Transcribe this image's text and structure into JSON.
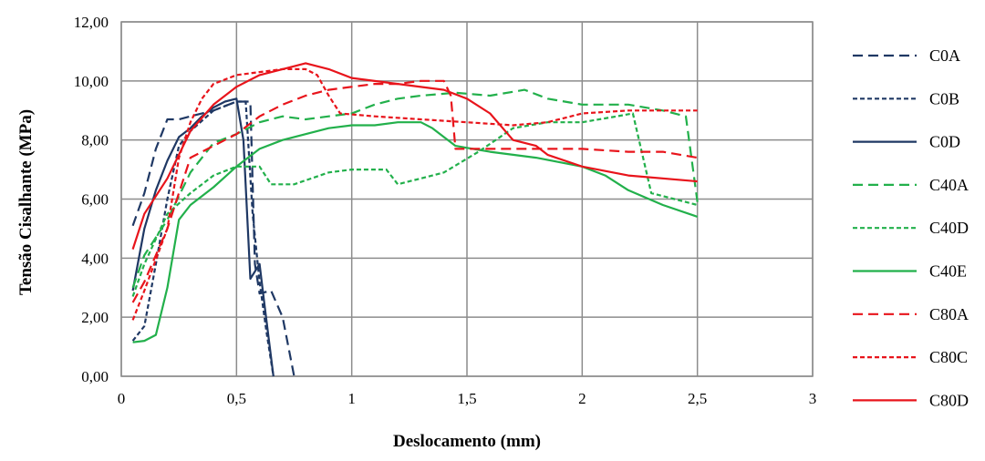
{
  "chart_data": {
    "type": "line",
    "title": "",
    "xlabel": "Deslocamento (mm)",
    "ylabel": "Tensão Cisalhante (MPa)",
    "xlim": [
      0,
      3
    ],
    "ylim": [
      0,
      12
    ],
    "x_ticks": [
      "0",
      "0,5",
      "1",
      "1,5",
      "2",
      "2,5",
      "3"
    ],
    "y_ticks": [
      "0,00",
      "2,00",
      "4,00",
      "6,00",
      "8,00",
      "10,00",
      "12,00"
    ],
    "grid": true,
    "legend_position": "right",
    "series": [
      {
        "name": "C0A",
        "color": "#1f3864",
        "dash": "long-dash",
        "points": [
          [
            0.05,
            5.1
          ],
          [
            0.1,
            6.2
          ],
          [
            0.15,
            7.7
          ],
          [
            0.2,
            8.7
          ],
          [
            0.25,
            8.7
          ],
          [
            0.3,
            8.8
          ],
          [
            0.4,
            9.0
          ],
          [
            0.5,
            9.3
          ],
          [
            0.56,
            9.3
          ],
          [
            0.58,
            3.8
          ],
          [
            0.6,
            2.8
          ],
          [
            0.65,
            2.9
          ],
          [
            0.7,
            2.0
          ],
          [
            0.75,
            0.0
          ]
        ]
      },
      {
        "name": "C0B",
        "color": "#1f3864",
        "dash": "short-dash",
        "points": [
          [
            0.05,
            1.2
          ],
          [
            0.1,
            1.7
          ],
          [
            0.15,
            3.8
          ],
          [
            0.2,
            6.0
          ],
          [
            0.25,
            7.8
          ],
          [
            0.3,
            8.3
          ],
          [
            0.4,
            9.0
          ],
          [
            0.5,
            9.3
          ],
          [
            0.54,
            9.3
          ],
          [
            0.57,
            5.5
          ],
          [
            0.6,
            3.2
          ],
          [
            0.63,
            1.5
          ],
          [
            0.66,
            0.0
          ]
        ]
      },
      {
        "name": "C0D",
        "color": "#1f3864",
        "dash": "solid",
        "points": [
          [
            0.05,
            2.9
          ],
          [
            0.1,
            5.0
          ],
          [
            0.15,
            6.3
          ],
          [
            0.2,
            7.3
          ],
          [
            0.25,
            8.1
          ],
          [
            0.3,
            8.4
          ],
          [
            0.35,
            8.8
          ],
          [
            0.4,
            9.1
          ],
          [
            0.45,
            9.3
          ],
          [
            0.5,
            9.4
          ],
          [
            0.53,
            8.0
          ],
          [
            0.56,
            3.3
          ],
          [
            0.6,
            3.8
          ],
          [
            0.62,
            2.5
          ],
          [
            0.66,
            0.0
          ]
        ]
      },
      {
        "name": "C40A",
        "color": "#22b04b",
        "dash": "long-dash",
        "points": [
          [
            0.05,
            3.0
          ],
          [
            0.1,
            4.1
          ],
          [
            0.2,
            5.3
          ],
          [
            0.3,
            6.9
          ],
          [
            0.4,
            7.9
          ],
          [
            0.5,
            8.2
          ],
          [
            0.6,
            8.6
          ],
          [
            0.7,
            8.8
          ],
          [
            0.8,
            8.7
          ],
          [
            0.9,
            8.8
          ],
          [
            1.0,
            8.9
          ],
          [
            1.1,
            9.2
          ],
          [
            1.2,
            9.4
          ],
          [
            1.3,
            9.5
          ],
          [
            1.45,
            9.6
          ],
          [
            1.6,
            9.5
          ],
          [
            1.75,
            9.7
          ],
          [
            1.85,
            9.4
          ],
          [
            2.0,
            9.2
          ],
          [
            2.2,
            9.2
          ],
          [
            2.35,
            9.0
          ],
          [
            2.45,
            8.8
          ],
          [
            2.5,
            5.9
          ]
        ]
      },
      {
        "name": "C40D",
        "color": "#22b04b",
        "dash": "short-dash",
        "points": [
          [
            0.05,
            2.7
          ],
          [
            0.1,
            3.8
          ],
          [
            0.2,
            5.5
          ],
          [
            0.3,
            6.2
          ],
          [
            0.4,
            6.8
          ],
          [
            0.5,
            7.1
          ],
          [
            0.6,
            7.1
          ],
          [
            0.65,
            6.5
          ],
          [
            0.75,
            6.5
          ],
          [
            0.9,
            6.9
          ],
          [
            1.0,
            7.0
          ],
          [
            1.15,
            7.0
          ],
          [
            1.2,
            6.5
          ],
          [
            1.3,
            6.7
          ],
          [
            1.4,
            6.9
          ],
          [
            1.55,
            7.6
          ],
          [
            1.7,
            8.4
          ],
          [
            1.85,
            8.6
          ],
          [
            2.0,
            8.6
          ],
          [
            2.15,
            8.8
          ],
          [
            2.22,
            8.9
          ],
          [
            2.3,
            6.2
          ],
          [
            2.4,
            6.0
          ],
          [
            2.5,
            5.8
          ]
        ]
      },
      {
        "name": "C40E",
        "color": "#22b04b",
        "dash": "solid",
        "points": [
          [
            0.05,
            1.15
          ],
          [
            0.1,
            1.2
          ],
          [
            0.15,
            1.4
          ],
          [
            0.2,
            3.0
          ],
          [
            0.25,
            5.3
          ],
          [
            0.3,
            5.8
          ],
          [
            0.4,
            6.4
          ],
          [
            0.5,
            7.1
          ],
          [
            0.6,
            7.7
          ],
          [
            0.7,
            8.0
          ],
          [
            0.8,
            8.2
          ],
          [
            0.9,
            8.4
          ],
          [
            1.0,
            8.5
          ],
          [
            1.1,
            8.5
          ],
          [
            1.2,
            8.6
          ],
          [
            1.3,
            8.6
          ],
          [
            1.35,
            8.4
          ],
          [
            1.45,
            7.8
          ],
          [
            1.6,
            7.6
          ],
          [
            1.8,
            7.4
          ],
          [
            2.0,
            7.1
          ],
          [
            2.1,
            6.8
          ],
          [
            2.2,
            6.3
          ],
          [
            2.35,
            5.8
          ],
          [
            2.5,
            5.4
          ]
        ]
      },
      {
        "name": "C80A",
        "color": "#e8141b",
        "dash": "long-dash",
        "points": [
          [
            0.05,
            2.5
          ],
          [
            0.1,
            3.2
          ],
          [
            0.2,
            5.0
          ],
          [
            0.3,
            7.4
          ],
          [
            0.4,
            7.8
          ],
          [
            0.5,
            8.2
          ],
          [
            0.6,
            8.8
          ],
          [
            0.7,
            9.2
          ],
          [
            0.8,
            9.5
          ],
          [
            0.9,
            9.7
          ],
          [
            1.0,
            9.8
          ],
          [
            1.1,
            9.9
          ],
          [
            1.2,
            9.9
          ],
          [
            1.3,
            10.0
          ],
          [
            1.4,
            10.0
          ],
          [
            1.43,
            9.5
          ],
          [
            1.45,
            7.7
          ],
          [
            1.6,
            7.7
          ],
          [
            1.8,
            7.7
          ],
          [
            2.0,
            7.7
          ],
          [
            2.2,
            7.6
          ],
          [
            2.35,
            7.6
          ],
          [
            2.5,
            7.4
          ]
        ]
      },
      {
        "name": "C80C",
        "color": "#e8141b",
        "dash": "short-dash",
        "points": [
          [
            0.05,
            1.9
          ],
          [
            0.1,
            2.9
          ],
          [
            0.2,
            5.0
          ],
          [
            0.25,
            7.4
          ],
          [
            0.3,
            8.6
          ],
          [
            0.35,
            9.4
          ],
          [
            0.4,
            9.9
          ],
          [
            0.5,
            10.2
          ],
          [
            0.6,
            10.3
          ],
          [
            0.7,
            10.4
          ],
          [
            0.8,
            10.4
          ],
          [
            0.85,
            10.2
          ],
          [
            0.9,
            9.5
          ],
          [
            0.95,
            8.9
          ],
          [
            1.1,
            8.8
          ],
          [
            1.3,
            8.7
          ],
          [
            1.5,
            8.6
          ],
          [
            1.7,
            8.5
          ],
          [
            1.85,
            8.6
          ],
          [
            2.0,
            8.9
          ],
          [
            2.2,
            9.0
          ],
          [
            2.5,
            9.0
          ]
        ]
      },
      {
        "name": "C80D",
        "color": "#e8141b",
        "dash": "solid",
        "points": [
          [
            0.05,
            4.3
          ],
          [
            0.1,
            5.5
          ],
          [
            0.2,
            6.7
          ],
          [
            0.3,
            8.3
          ],
          [
            0.4,
            9.2
          ],
          [
            0.5,
            9.8
          ],
          [
            0.6,
            10.2
          ],
          [
            0.7,
            10.4
          ],
          [
            0.8,
            10.6
          ],
          [
            0.9,
            10.4
          ],
          [
            1.0,
            10.1
          ],
          [
            1.2,
            9.9
          ],
          [
            1.4,
            9.7
          ],
          [
            1.5,
            9.4
          ],
          [
            1.6,
            8.9
          ],
          [
            1.7,
            8.0
          ],
          [
            1.8,
            7.8
          ],
          [
            1.85,
            7.5
          ],
          [
            2.0,
            7.1
          ],
          [
            2.2,
            6.8
          ],
          [
            2.5,
            6.6
          ]
        ]
      }
    ]
  }
}
